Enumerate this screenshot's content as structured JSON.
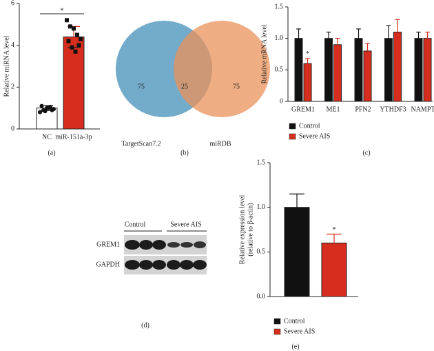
{
  "chart_data": [
    {
      "type": "bar",
      "panel": "(a)",
      "y_label": "Relative miRNA level",
      "categories": [
        "NC",
        "miR-151a-3p"
      ],
      "values": [
        1.0,
        4.4
      ],
      "errors": [
        0.12,
        0.5
      ],
      "colors": [
        "#ffffff",
        "#d62d1e"
      ],
      "points": [
        [
          0.8,
          0.9,
          1.0,
          1.05,
          0.95,
          1.1,
          0.85,
          1.0,
          0.9
        ],
        [
          5.2,
          4.9,
          4.8,
          4.5,
          4.3,
          4.2,
          3.9,
          3.7,
          4.0
        ]
      ],
      "annotation": "*",
      "ylim": [
        0,
        6
      ],
      "yticks": [
        0,
        2,
        4,
        6
      ]
    },
    {
      "type": "bar",
      "panel": "(c)",
      "y_label": "Relative mRNA level",
      "categories": [
        "GREM1",
        "ME1",
        "PFN2",
        "YTHDF3",
        "NAMPT"
      ],
      "series": [
        {
          "name": "Control",
          "color": "#111111",
          "values": [
            1.0,
            1.0,
            1.0,
            1.0,
            1.0
          ],
          "errors": [
            0.15,
            0.1,
            0.15,
            0.2,
            0.1
          ]
        },
        {
          "name": "Severe AIS",
          "color": "#d62d1e",
          "values": [
            0.6,
            0.9,
            0.8,
            1.1,
            1.0
          ],
          "errors": [
            0.08,
            0.1,
            0.12,
            0.2,
            0.1
          ]
        }
      ],
      "annotation": "*",
      "ylim": [
        0,
        1.5
      ],
      "yticks": [
        0,
        0.5,
        {
          "value": 1,
          "label": "1.0"
        },
        1.5
      ]
    },
    {
      "type": "bar",
      "panel": "(e)",
      "y_label": [
        "Relative expression level",
        "(relative to β-actin)"
      ],
      "series": [
        {
          "name": "Control",
          "color": "#111111",
          "values": [
            1.0
          ],
          "errors": [
            0.15
          ]
        },
        {
          "name": "Severe AIS",
          "color": "#d62d1e",
          "values": [
            0.6
          ],
          "errors": [
            0.1
          ]
        }
      ],
      "annotation": "*",
      "ylim": [
        0,
        1.5
      ],
      "yticks": [
        {
          "value": 0,
          "label": "0.0"
        },
        0.5,
        {
          "value": 1,
          "label": "1.0"
        },
        1.5
      ]
    }
  ],
  "venn": {
    "panel": "(b)",
    "left_label": "TargetScan7.2",
    "left_only": 75,
    "overlap": 25,
    "right_label": "miRDB",
    "right_only": 75
  },
  "blot": {
    "panel": "(d)",
    "groups": [
      "Control",
      "Severe AIS"
    ],
    "rows": [
      "GREM1",
      "GAPDH"
    ]
  }
}
